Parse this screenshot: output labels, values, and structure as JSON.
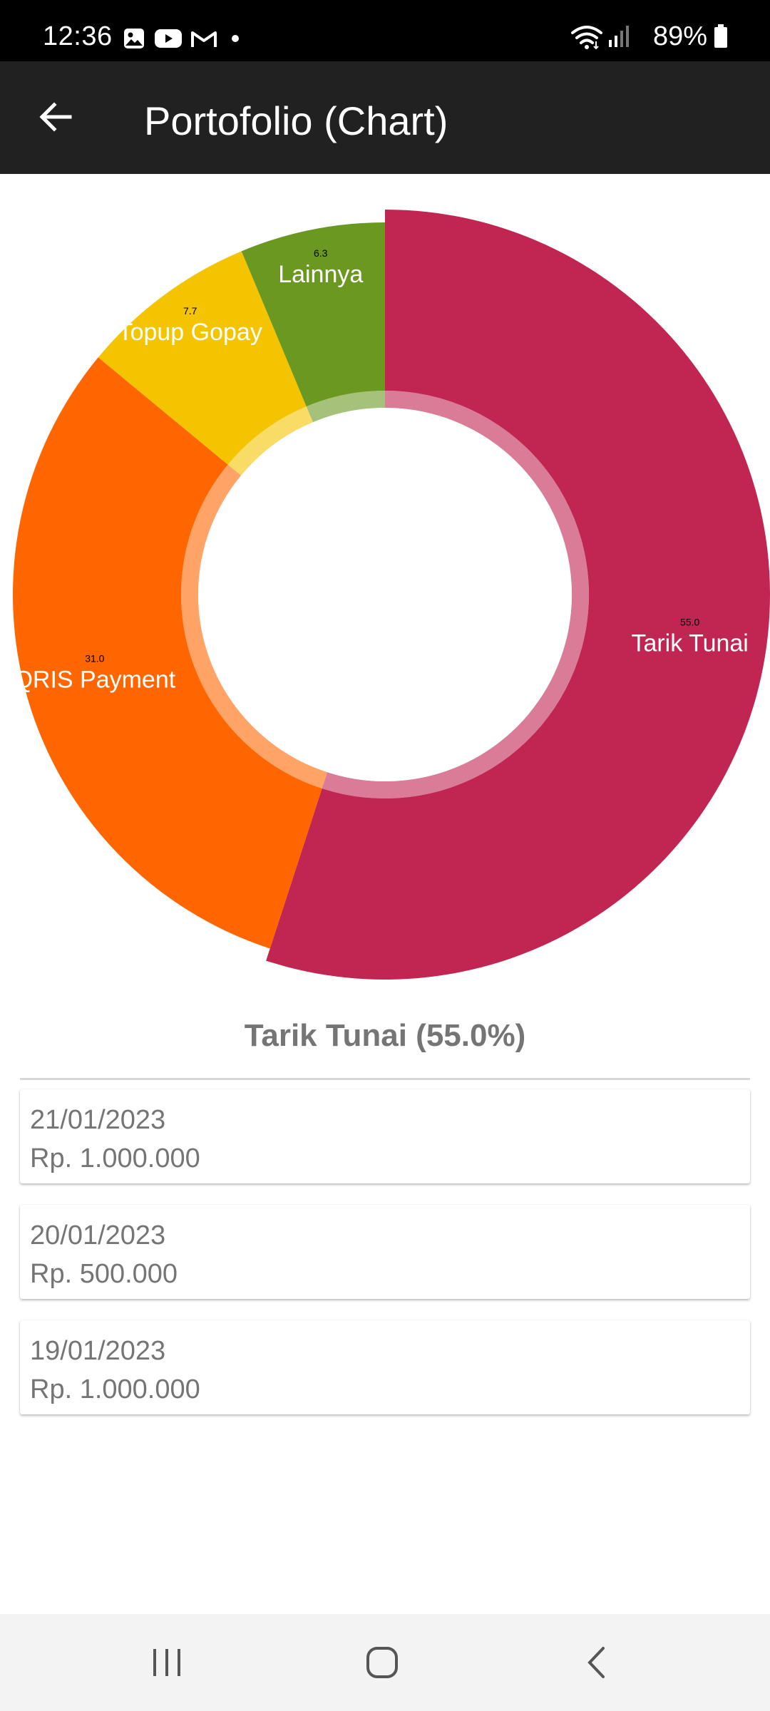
{
  "status_bar": {
    "time": "12:36",
    "left_icons": [
      "gallery-icon",
      "youtube-icon",
      "gmail-icon",
      "dot-icon"
    ],
    "right_icons": [
      "wifi-icon",
      "signal-icon",
      "battery-icon"
    ],
    "battery": "89%"
  },
  "app_bar": {
    "back_icon": "arrow-back-icon",
    "title": "Portofolio (Chart)",
    "background": "#212121"
  },
  "chart_data": {
    "type": "pie",
    "style": "donut",
    "title": "",
    "categories": [
      "Tarik Tunai",
      "QRIS Payment",
      "Topup Gopay",
      "Lainnya"
    ],
    "values": [
      55.0,
      31.0,
      7.7,
      6.3
    ],
    "value_labels": [
      "55.0",
      "31.0",
      "7.7",
      "6.3"
    ],
    "colors": [
      "#C12552",
      "#FF6600",
      "#F4C400",
      "#6B9821"
    ],
    "selected": "Tarik Tunai",
    "legend": "none"
  },
  "selection": {
    "label": "Tarik Tunai (55.0%)"
  },
  "transactions": [
    {
      "date": "21/01/2023",
      "amount": "Rp. 1.000.000"
    },
    {
      "date": "20/01/2023",
      "amount": "Rp. 500.000"
    },
    {
      "date": "19/01/2023",
      "amount": "Rp. 1.000.000"
    }
  ],
  "nav_bar": {
    "recents_icon": "recents-icon",
    "home_icon": "home-icon",
    "back_icon": "back-icon"
  }
}
